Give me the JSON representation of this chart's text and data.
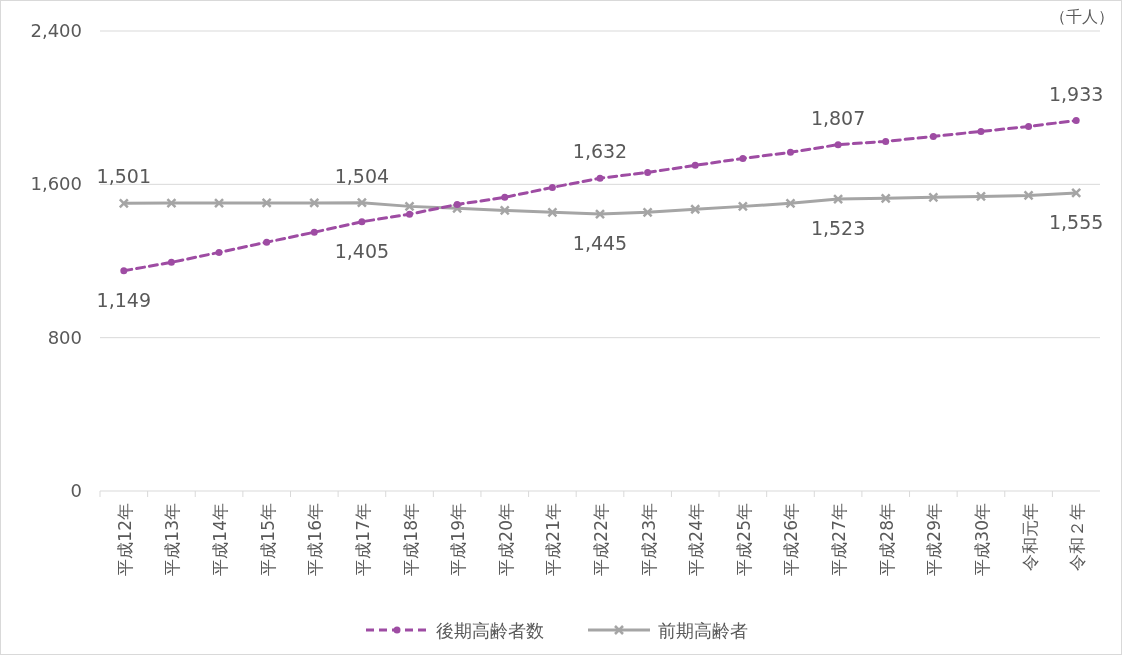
{
  "chart_data": {
    "type": "line",
    "ylabel": "（千人）",
    "categories": [
      "平成12年",
      "平成13年",
      "平成14年",
      "平成15年",
      "平成16年",
      "平成17年",
      "平成18年",
      "平成19年",
      "平成20年",
      "平成21年",
      "平成22年",
      "平成23年",
      "平成24年",
      "平成25年",
      "平成26年",
      "平成27年",
      "平成28年",
      "平成29年",
      "平成30年",
      "令和元年",
      "令和２年"
    ],
    "series": [
      {
        "name": "後期高齢者数",
        "color": "#9e4ca3",
        "line_style": "dashed",
        "marker": "circle",
        "values": [
          1149,
          1193,
          1245,
          1298,
          1350,
          1405,
          1444,
          1495,
          1532,
          1584,
          1632,
          1662,
          1699,
          1735,
          1767,
          1807,
          1824,
          1850,
          1876,
          1902,
          1933
        ],
        "value_labels": [
          "1,149",
          null,
          null,
          null,
          null,
          "1,405",
          null,
          null,
          null,
          null,
          "1,632",
          null,
          null,
          null,
          null,
          "1,807",
          null,
          null,
          null,
          null,
          "1,933"
        ]
      },
      {
        "name": "前期高齢者",
        "color": "#a5a5a5",
        "line_style": "solid",
        "marker": "cross",
        "values": [
          1501,
          1502,
          1502,
          1503,
          1503,
          1504,
          1485,
          1475,
          1464,
          1454,
          1445,
          1454,
          1470,
          1485,
          1501,
          1523,
          1527,
          1532,
          1537,
          1542,
          1555
        ],
        "value_labels": [
          "1,501",
          null,
          null,
          null,
          null,
          "1,504",
          null,
          null,
          null,
          null,
          "1,445",
          null,
          null,
          null,
          null,
          "1,523",
          null,
          null,
          null,
          null,
          "1,555"
        ]
      }
    ],
    "ylim": [
      0,
      2400
    ],
    "yticks": [
      0,
      {
        "value": 800,
        "label": "800"
      },
      {
        "value": 1600,
        "label": "1,600"
      },
      {
        "value": 2400,
        "label": "2,400"
      }
    ],
    "grid": "y",
    "legend": "bottom"
  }
}
